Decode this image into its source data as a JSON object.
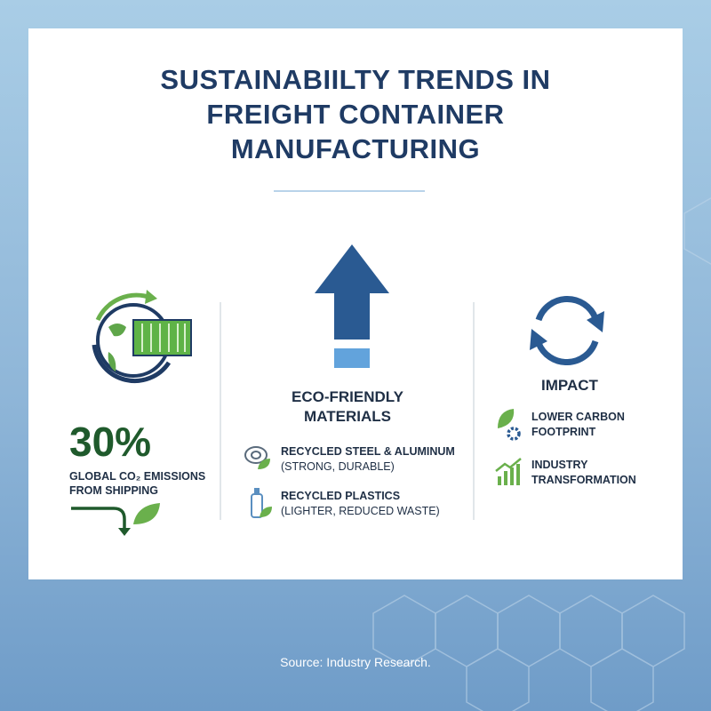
{
  "title": {
    "lines": [
      "SUSTAINABIILTY TRENDS IN",
      "FREIGHT CONTAINER",
      "MANUFACTURING"
    ]
  },
  "stat": {
    "value": "30%",
    "label": [
      "GLOBAL CO₂ EMISSIONS",
      "FROM SHIPPING"
    ]
  },
  "materials": {
    "heading": [
      "ECO-FRIENDLY",
      "MATERIALS"
    ],
    "items": [
      {
        "name": "RECYCLED STEEL & ALUMINUM",
        "detail": "(STRONG, DURABLE)"
      },
      {
        "name": "RECYCLED PLASTICS",
        "detail": "(LIGHTER, REDUCED WASTE)"
      }
    ]
  },
  "impact": {
    "heading": "IMPACT",
    "items": [
      [
        "LOWER CARBON",
        "FOOTPRINT"
      ],
      [
        "INDUSTRY",
        "TRANSFORMATION"
      ]
    ]
  },
  "footer": {
    "source": "Source: Industry Research."
  }
}
